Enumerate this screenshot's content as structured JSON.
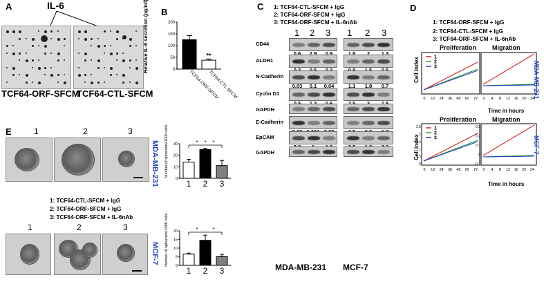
{
  "panels": {
    "A": {
      "label": "A",
      "marker": "IL-6",
      "captions": [
        "TCF64-ORF-SFCM",
        "TCF64-CTL-SFCM"
      ]
    },
    "B": {
      "label": "B",
      "ylabel": "Relative IL-6 secretion (pg/ml)",
      "chart_data": {
        "type": "bar",
        "categories": [
          "TCF64-ORF-SFCM",
          "TCF64-CTL-SFCM"
        ],
        "values": [
          125,
          38
        ],
        "errors": [
          18,
          5
        ],
        "ylim": [
          0,
          200
        ],
        "yticks": [
          "0",
          "50",
          "100",
          "150",
          "200"
        ],
        "significance": "**",
        "colors": [
          "#000000",
          "#ffffff"
        ]
      }
    },
    "C": {
      "label": "C",
      "legend": [
        "1: TCF64-CTL-SFCM + IgG",
        "2: TCF64-ORF-SFCM + IgG",
        "3: TCF64-ORF-SFCM + IL-6nAb"
      ],
      "lanes": [
        "1",
        "2",
        "3",
        "1",
        "2",
        "3"
      ],
      "rows": [
        {
          "name": "CD44",
          "left": [
            "0.6",
            "2.9",
            "0.9"
          ],
          "right": [
            "1.8",
            "2",
            "1.3"
          ]
        },
        {
          "name": "ALDH1",
          "left": [
            "0.2",
            "0.5",
            "0.3"
          ],
          "right": [
            "0.8",
            "1.5",
            "0.5"
          ]
        },
        {
          "name": "N-Cadherin",
          "left": [
            "0.03",
            "0.1",
            "0.04"
          ],
          "right": [
            "1.1",
            "1.8",
            "0.7"
          ]
        },
        {
          "name": "Cyclin D1",
          "left": [
            "0.5",
            "1.2",
            "0.6"
          ],
          "right": [
            "2.5",
            "3",
            "1.8"
          ]
        },
        {
          "name": "GAPDH",
          "left": [],
          "right": []
        },
        {
          "name": "E-Cadherin",
          "left": [
            "0.02",
            "0.001",
            "0.03"
          ],
          "right": [
            "2.5",
            "0.8",
            "1.7"
          ]
        },
        {
          "name": "EpCAM",
          "left": [
            "2.2",
            "1",
            "1.9"
          ],
          "right": [
            "3.5",
            "1.3",
            "3.2"
          ]
        },
        {
          "name": "GAPDH",
          "left": [],
          "right": []
        }
      ],
      "cell_lines": [
        "MDA-MB-231",
        "MCF-7"
      ]
    },
    "D": {
      "label": "D",
      "legend": [
        "1: TCF64-ORF-SFCM + IgG",
        "2: TCF64-CTL-SFCM + IgG",
        "3: TCF64-ORF-SFCM + IL-6nAb"
      ],
      "ylabel": "Cell index",
      "xlabel": "Time in hours",
      "inset_legend": [
        "1",
        "2",
        "3"
      ],
      "series_colors": [
        "#d62020",
        "#2a9d3a",
        "#1f3fbf"
      ],
      "row1": {
        "cell_line": "MDA-MB-231",
        "titles": [
          "Proliferation",
          "Migration"
        ],
        "prolif_ticks": [
          "0",
          "12",
          "24",
          "36",
          "48",
          "60",
          "72"
        ],
        "mig_ticks": [
          "0",
          "4",
          "8",
          "12",
          "16",
          "20",
          "24"
        ]
      },
      "row2": {
        "cell_line": "MCF-7",
        "titles": [
          "Proliferation",
          "Migration"
        ],
        "prolif_ticks": [
          "0",
          "12",
          "24",
          "36",
          "48",
          "60",
          "72"
        ],
        "mig_ticks": [
          "0",
          "4",
          "8",
          "12",
          "16",
          "20",
          "24"
        ],
        "prolif_yticks": [
          "2.5",
          "2",
          "1.5",
          "1",
          "0.5",
          "0"
        ],
        "mig_yticks": [
          "0.3",
          "0.2",
          "0.1",
          "0",
          "-0.1"
        ]
      }
    },
    "E": {
      "label": "E",
      "legend": [
        "1: TCF64-CTL-SFCM + IgG",
        "2: TCF64-ORF-SFCM + IgG",
        "3: TCF64-ORF-SFCM + IL-6nAb"
      ],
      "image_numbers": [
        "1",
        "2",
        "3"
      ],
      "top": {
        "cell_line": "MDA-MB-231",
        "ylabel": "Number of spheroids/1000 cells",
        "chart_data": {
          "type": "bar",
          "categories": [
            "1",
            "2",
            "3"
          ],
          "values": [
            14,
            25,
            11
          ],
          "errors": [
            2.5,
            1,
            4.5
          ],
          "ylim": [
            0,
            30
          ],
          "yticks": [
            "0",
            "10",
            "20",
            "30"
          ],
          "significance": [
            "*",
            "*",
            "*"
          ],
          "colors": [
            "#ffffff",
            "#000000",
            "#808080"
          ]
        }
      },
      "bottom": {
        "cell_line": "MCF-7",
        "ylabel": "Number of spheroids/1000 cells",
        "chart_data": {
          "type": "bar",
          "categories": [
            "1",
            "2",
            "3"
          ],
          "values": [
            6.5,
            14.5,
            5
          ],
          "errors": [
            0.6,
            3,
            1.4
          ],
          "ylim": [
            0,
            20
          ],
          "yticks": [
            "0",
            "5",
            "10",
            "15",
            "20"
          ],
          "significance": [
            "*",
            "*"
          ],
          "colors": [
            "#ffffff",
            "#000000",
            "#808080"
          ]
        }
      }
    }
  }
}
